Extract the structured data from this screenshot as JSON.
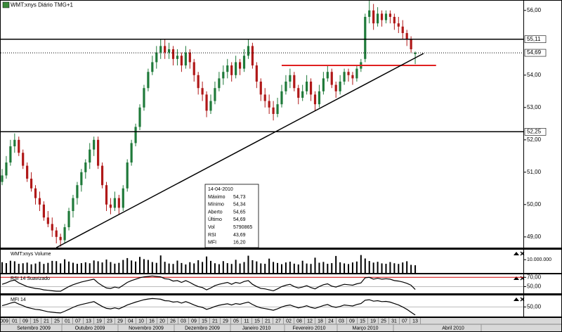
{
  "title": "WMT:xnys Diário TMG+1",
  "chart_data": [
    {
      "type": "candlestick",
      "up_color": "#1f7a3a",
      "down_color": "#b01818",
      "candles": [
        [
          50.7,
          51.1,
          50.6,
          50.9
        ],
        [
          50.9,
          51.5,
          50.8,
          51.3
        ],
        [
          51.3,
          52.0,
          51.2,
          51.8
        ],
        [
          51.8,
          52.2,
          51.6,
          52.0
        ],
        [
          52.0,
          52.1,
          51.5,
          51.6
        ],
        [
          51.6,
          51.7,
          51.1,
          51.2
        ],
        [
          51.2,
          51.3,
          50.7,
          50.8
        ],
        [
          50.8,
          51.0,
          50.4,
          50.5
        ],
        [
          50.5,
          50.6,
          50.0,
          50.2
        ],
        [
          50.2,
          50.4,
          49.8,
          50.0
        ],
        [
          50.0,
          50.1,
          49.5,
          49.6
        ],
        [
          49.6,
          49.8,
          49.3,
          49.4
        ],
        [
          49.4,
          49.6,
          49.0,
          49.2
        ],
        [
          49.2,
          49.3,
          48.8,
          49.0
        ],
        [
          49.0,
          49.1,
          48.7,
          48.9
        ],
        [
          48.9,
          49.4,
          48.8,
          49.3
        ],
        [
          49.3,
          49.9,
          49.2,
          49.8
        ],
        [
          49.8,
          50.3,
          49.6,
          50.2
        ],
        [
          50.2,
          50.7,
          50.0,
          50.6
        ],
        [
          50.6,
          51.1,
          50.4,
          51.0
        ],
        [
          51.0,
          51.4,
          50.8,
          51.3
        ],
        [
          51.3,
          51.9,
          51.1,
          51.7
        ],
        [
          51.7,
          52.1,
          51.5,
          52.0
        ],
        [
          52.0,
          52.1,
          51.1,
          51.2
        ],
        [
          51.2,
          51.3,
          50.5,
          50.6
        ],
        [
          50.6,
          50.7,
          49.8,
          50.0
        ],
        [
          50.0,
          50.2,
          49.7,
          49.9
        ],
        [
          49.9,
          50.4,
          49.8,
          50.2
        ],
        [
          50.2,
          50.3,
          49.7,
          49.9
        ],
        [
          49.9,
          50.6,
          49.8,
          50.5
        ],
        [
          50.5,
          51.4,
          50.4,
          51.3
        ],
        [
          51.3,
          52.0,
          51.2,
          51.9
        ],
        [
          51.9,
          52.5,
          51.8,
          52.4
        ],
        [
          52.4,
          53.1,
          52.3,
          53.0
        ],
        [
          53.0,
          53.7,
          52.9,
          53.6
        ],
        [
          53.6,
          54.2,
          53.5,
          54.1
        ],
        [
          54.1,
          54.6,
          54.0,
          54.4
        ],
        [
          54.4,
          54.9,
          54.2,
          54.7
        ],
        [
          54.7,
          55.1,
          54.5,
          54.9
        ],
        [
          54.9,
          55.1,
          54.5,
          54.7
        ],
        [
          54.7,
          55.0,
          54.5,
          54.8
        ],
        [
          54.8,
          54.9,
          54.3,
          54.5
        ],
        [
          54.5,
          54.8,
          54.3,
          54.6
        ],
        [
          54.6,
          54.7,
          54.1,
          54.3
        ],
        [
          54.3,
          54.9,
          54.2,
          54.7
        ],
        [
          54.7,
          54.8,
          54.2,
          54.4
        ],
        [
          54.4,
          54.5,
          53.8,
          54.0
        ],
        [
          54.0,
          54.1,
          53.4,
          53.6
        ],
        [
          53.6,
          53.8,
          53.2,
          53.4
        ],
        [
          53.4,
          53.5,
          52.7,
          52.9
        ],
        [
          52.9,
          53.4,
          52.8,
          53.2
        ],
        [
          53.2,
          53.8,
          53.1,
          53.6
        ],
        [
          53.6,
          54.1,
          53.5,
          53.9
        ],
        [
          53.9,
          54.3,
          53.7,
          54.1
        ],
        [
          54.1,
          54.5,
          53.9,
          54.3
        ],
        [
          54.3,
          54.4,
          53.8,
          54.0
        ],
        [
          54.0,
          54.6,
          53.9,
          54.4
        ],
        [
          54.4,
          54.5,
          54.0,
          54.2
        ],
        [
          54.2,
          54.8,
          54.1,
          54.6
        ],
        [
          54.6,
          55.1,
          54.5,
          54.9
        ],
        [
          54.9,
          55.0,
          54.2,
          54.3
        ],
        [
          54.3,
          54.4,
          53.6,
          53.8
        ],
        [
          53.8,
          53.9,
          53.2,
          53.4
        ],
        [
          53.4,
          53.6,
          53.0,
          53.2
        ],
        [
          53.2,
          53.4,
          52.8,
          53.0
        ],
        [
          53.0,
          53.2,
          52.6,
          52.8
        ],
        [
          52.8,
          53.3,
          52.7,
          53.1
        ],
        [
          53.1,
          53.7,
          53.0,
          53.5
        ],
        [
          53.5,
          54.0,
          53.4,
          53.8
        ],
        [
          53.8,
          54.2,
          53.6,
          54.0
        ],
        [
          54.0,
          54.1,
          53.5,
          53.6
        ],
        [
          53.6,
          53.7,
          53.1,
          53.3
        ],
        [
          53.3,
          53.7,
          53.2,
          53.5
        ],
        [
          53.5,
          54.0,
          53.4,
          53.8
        ],
        [
          53.8,
          53.9,
          53.2,
          53.4
        ],
        [
          53.4,
          53.5,
          52.9,
          53.1
        ],
        [
          53.1,
          53.7,
          53.0,
          53.5
        ],
        [
          53.5,
          54.1,
          53.4,
          53.9
        ],
        [
          53.9,
          54.3,
          53.8,
          54.1
        ],
        [
          54.1,
          54.2,
          53.6,
          53.7
        ],
        [
          53.7,
          53.8,
          53.3,
          53.5
        ],
        [
          53.5,
          54.0,
          53.4,
          53.8
        ],
        [
          53.8,
          54.2,
          53.7,
          54.1
        ],
        [
          54.1,
          54.2,
          53.8,
          54.0
        ],
        [
          54.0,
          54.1,
          53.7,
          53.9
        ],
        [
          53.9,
          54.3,
          53.8,
          54.2
        ],
        [
          54.2,
          54.5,
          54.1,
          54.4
        ],
        [
          54.5,
          55.9,
          54.4,
          55.8
        ],
        [
          55.8,
          56.3,
          55.6,
          56.0
        ],
        [
          56.0,
          56.2,
          55.4,
          55.6
        ],
        [
          55.6,
          56.1,
          55.5,
          55.9
        ],
        [
          55.9,
          56.0,
          55.5,
          55.7
        ],
        [
          55.7,
          56.0,
          55.6,
          55.9
        ],
        [
          55.9,
          56.0,
          55.6,
          55.8
        ],
        [
          55.8,
          55.9,
          55.4,
          55.6
        ],
        [
          55.6,
          55.8,
          55.3,
          55.5
        ],
        [
          55.5,
          55.7,
          55.1,
          55.3
        ],
        [
          55.3,
          55.4,
          54.9,
          55.1
        ],
        [
          55.1,
          55.2,
          54.7,
          54.8
        ],
        [
          54.65,
          54.73,
          54.34,
          54.69
        ]
      ],
      "ylim": [
        48.67,
        56.3
      ],
      "yticks": [
        {
          "value": 56,
          "label": "56,00"
        },
        {
          "value": 54,
          "label": "54,00"
        },
        {
          "value": 53,
          "label": "53,00"
        },
        {
          "value": 52,
          "label": "52,00"
        },
        {
          "value": 51,
          "label": "51,00"
        },
        {
          "value": 50,
          "label": "50,00"
        },
        {
          "value": 49,
          "label": "49,00"
        }
      ],
      "levels": [
        {
          "value": 55.11,
          "label": "55,11",
          "style": "solid"
        },
        {
          "value": 54.69,
          "label": "54,69",
          "style": "dotted"
        },
        {
          "value": 52.25,
          "label": "52,25",
          "style": "solid"
        }
      ],
      "support": {
        "value": 54.3,
        "x_range": [
          67,
          104
        ],
        "color": "#e02020"
      },
      "trendline": {
        "from": [
          13,
          48.67
        ],
        "to": [
          101,
          54.67
        ],
        "color": "#000000"
      }
    },
    {
      "type": "bar",
      "title": "WMT:xnys Volume",
      "color": "#000000",
      "values": [
        8100000,
        7400000,
        9200000,
        8800000,
        6900000,
        7300000,
        7800000,
        6500000,
        7100000,
        8400000,
        6800000,
        7600000,
        9100000,
        8900000,
        7200000,
        10300000,
        8600000,
        7700000,
        6900000,
        7400000,
        8000000,
        7300000,
        9400000,
        8800000,
        7900000,
        10100000,
        8200000,
        7000000,
        7600000,
        9800000,
        11200000,
        9400000,
        8600000,
        12100000,
        10400000,
        9800000,
        8200000,
        7600000,
        13200000,
        8400000,
        7100000,
        6800000,
        9300000,
        7500000,
        6400000,
        8100000,
        7200000,
        9600000,
        8300000,
        12400000,
        9100000,
        7300000,
        6600000,
        8900000,
        7400000,
        6800000,
        9900000,
        7100000,
        8200000,
        13000000,
        9600000,
        8700000,
        7200000,
        6900000,
        10800000,
        8300000,
        7500000,
        6600000,
        7900000,
        8500000,
        7000000,
        6400000,
        9200000,
        7100000,
        6800000,
        11500000,
        7700000,
        8300000,
        6900000,
        7400000,
        12800000,
        8000000,
        7200000,
        6700000,
        7900000,
        8600000,
        13500000,
        10900000,
        9000000,
        7800000,
        8400000,
        7200000,
        6900000,
        8200000,
        7300000,
        6800000,
        7900000,
        8800000,
        6100000,
        5790865
      ],
      "ylim": [
        0,
        17000000
      ],
      "yticks": [
        {
          "value": 10000000,
          "label": "10.000.000"
        }
      ]
    },
    {
      "type": "line",
      "title": "RSI 14 Suavizado",
      "color": "#000000",
      "values": [
        55,
        58,
        62,
        64,
        58,
        54,
        50,
        48,
        46,
        45,
        43,
        42,
        41,
        40,
        40,
        45,
        50,
        54,
        57,
        60,
        62,
        64,
        66,
        58,
        52,
        47,
        46,
        49,
        47,
        53,
        59,
        63,
        66,
        69,
        71,
        72,
        73,
        72,
        71,
        67,
        66,
        62,
        63,
        59,
        63,
        59,
        54,
        50,
        48,
        43,
        47,
        52,
        55,
        57,
        59,
        55,
        59,
        57,
        61,
        63,
        55,
        50,
        46,
        45,
        43,
        41,
        45,
        50,
        53,
        55,
        50,
        47,
        49,
        52,
        48,
        45,
        50,
        54,
        56,
        51,
        49,
        52,
        55,
        54,
        53,
        56,
        58,
        69,
        70,
        66,
        68,
        66,
        67,
        66,
        63,
        62,
        60,
        57,
        53,
        43.69
      ],
      "ylim": [
        37,
        75
      ],
      "yticks": [
        {
          "value": 70,
          "label": "70,00"
        },
        {
          "value": 50,
          "label": "50,00"
        }
      ],
      "tick_colors": [
        "#d00000",
        "#bbbbbb"
      ]
    },
    {
      "type": "line",
      "title": "MFI 14",
      "color": "#000000",
      "values": [
        55,
        60,
        66,
        70,
        62,
        55,
        48,
        44,
        40,
        38,
        34,
        30,
        28,
        26,
        25,
        32,
        40,
        48,
        55,
        60,
        64,
        68,
        72,
        62,
        52,
        44,
        42,
        46,
        42,
        50,
        58,
        64,
        70,
        75,
        80,
        83,
        85,
        84,
        82,
        76,
        75,
        70,
        72,
        66,
        72,
        66,
        58,
        52,
        48,
        40,
        45,
        52,
        57,
        60,
        63,
        58,
        64,
        61,
        66,
        70,
        60,
        52,
        46,
        43,
        40,
        36,
        42,
        50,
        55,
        58,
        52,
        46,
        50,
        55,
        48,
        44,
        50,
        56,
        60,
        52,
        48,
        52,
        58,
        56,
        54,
        60,
        64,
        78,
        80,
        74,
        76,
        72,
        73,
        70,
        64,
        58,
        50,
        40,
        28,
        16.2
      ],
      "ylim": [
        10,
        95
      ],
      "yticks": [
        {
          "value": 50,
          "label": "50,00"
        }
      ],
      "tick_colors": [
        "#bbbbbb"
      ]
    }
  ],
  "x_axis": {
    "days": [
      "009",
      "01",
      "09",
      "15",
      "21",
      "25",
      "01",
      "07",
      "13",
      "19",
      "23",
      "29",
      "04",
      "10",
      "16",
      "20",
      "26",
      "03",
      "09",
      "15",
      "21",
      "29",
      "05",
      "11",
      "15",
      "21",
      "27",
      "02",
      "08",
      "12",
      "18",
      "24",
      "03",
      "09",
      "15",
      "19",
      "25",
      "31",
      "07",
      "13"
    ],
    "months": [
      "Setembro 2009",
      "Outubro 2009",
      "Novembro 2009",
      "Dezembro 2009",
      "Janeiro 2010",
      "Fevereiro 2010",
      "Março 2010",
      "Abril 2010"
    ]
  },
  "info_box": {
    "date": "14-04-2010",
    "rows": [
      [
        "Máximo",
        "54,73"
      ],
      [
        "Mínimo",
        "54,34"
      ],
      [
        "Aberto",
        "54,65"
      ],
      [
        "Último",
        "54,69"
      ],
      [
        "Vol",
        "5790865"
      ],
      [
        "RSI",
        "43,69"
      ],
      [
        "MFI",
        "16,20"
      ]
    ]
  }
}
